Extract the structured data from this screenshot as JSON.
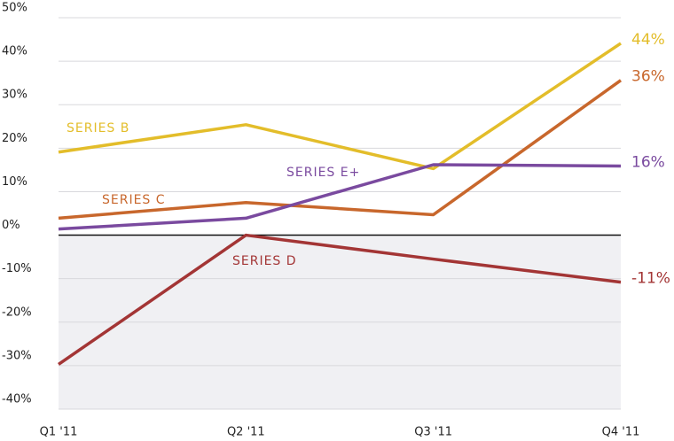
{
  "chart_data": {
    "type": "line",
    "categories": [
      "Q1 '11",
      "Q2 '11",
      "Q3 '11",
      "Q4 '11"
    ],
    "series": [
      {
        "name": "SERIES B",
        "color": "#e3bd2a",
        "values": [
          19.1,
          25.4,
          15.3,
          44.1
        ],
        "value_labels": [
          null,
          null,
          null,
          "44%"
        ]
      },
      {
        "name": "SERIES C",
        "color": "#c8672c",
        "values": [
          3.9,
          7.5,
          4.7,
          35.6
        ],
        "value_labels": [
          null,
          null,
          null,
          "36%"
        ]
      },
      {
        "name": "SERIES D",
        "color": "#a33535",
        "values": [
          -29.7,
          0,
          -5.5,
          -10.8
        ],
        "value_labels": [
          null,
          null,
          null,
          "-11%"
        ]
      },
      {
        "name": "SERIES E+",
        "color": "#7a4a9f",
        "values": [
          1.4,
          3.9,
          16.2,
          15.9
        ],
        "value_labels": [
          null,
          null,
          null,
          "16%"
        ]
      }
    ],
    "ylim": [
      -40,
      50
    ],
    "yticks": [
      {
        "value": -40,
        "label": "-40%"
      },
      {
        "value": -30,
        "label": "-30%"
      },
      {
        "value": -20,
        "label": "-20%"
      },
      {
        "value": -10,
        "label": "-10%"
      },
      {
        "value": 0,
        "label": "0%"
      },
      {
        "value": 10,
        "label": "10%"
      },
      {
        "value": 20,
        "label": "20%"
      },
      {
        "value": 30,
        "label": "30%"
      },
      {
        "value": 40,
        "label": "40%"
      },
      {
        "value": 50,
        "label": "50%"
      }
    ],
    "grid": true
  }
}
